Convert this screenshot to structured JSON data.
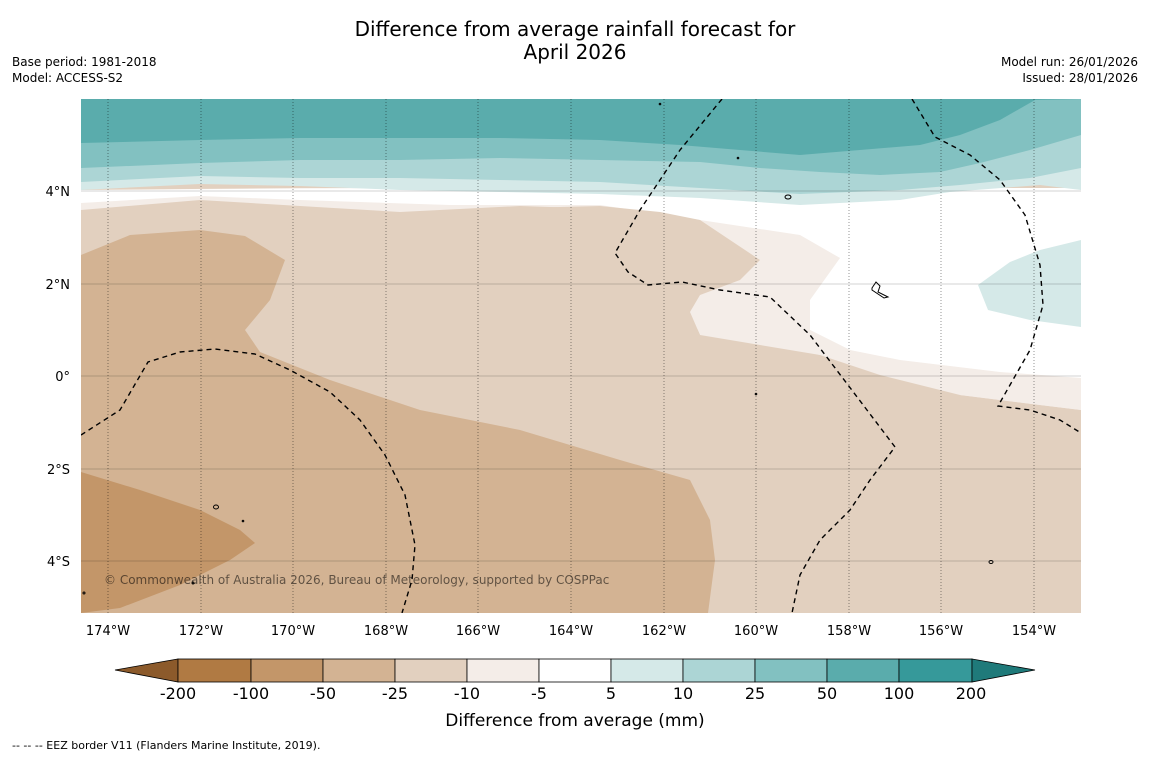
{
  "title_line1": "Difference from average rainfall forecast for",
  "title_line2": "April 2026",
  "meta_left": [
    "Base period: 1981-2018",
    "Model: ACCESS-S2"
  ],
  "meta_right": [
    "Model run: 26/01/2026",
    "Issued: 28/01/2026"
  ],
  "map": {
    "lat_labels": [
      "4°N",
      "2°N",
      "0°",
      "2°S",
      "4°S"
    ],
    "lon_labels": [
      "174°W",
      "172°W",
      "170°W",
      "168°W",
      "166°W",
      "164°W",
      "162°W",
      "160°W",
      "158°W",
      "156°W",
      "154°W"
    ],
    "copyright": "© Commonwealth of Australia 2026, Bureau of Meteorology, supported by COSPPac"
  },
  "legend": {
    "title": "Difference from average (mm)",
    "ticks": [
      "-200",
      "-100",
      "-50",
      "-25",
      "-10",
      "-5",
      "5",
      "10",
      "25",
      "50",
      "100",
      "200"
    ],
    "colors": {
      "extend_low": "#8c5a2b",
      "b1": "#b07a43",
      "b2": "#c39669",
      "b3": "#d3b393",
      "b4": "#e2d0bf",
      "b5": "#f4ede8",
      "b6": "#ffffff",
      "b7": "#d5e9e8",
      "b8": "#acd5d5",
      "b9": "#82c1c1",
      "b10": "#5aacac",
      "b11": "#36999a",
      "extend_high": "#1f7a7a"
    }
  },
  "footer": "--  --  -- EEZ border V11 (Flanders Marine Institute, 2019)."
}
